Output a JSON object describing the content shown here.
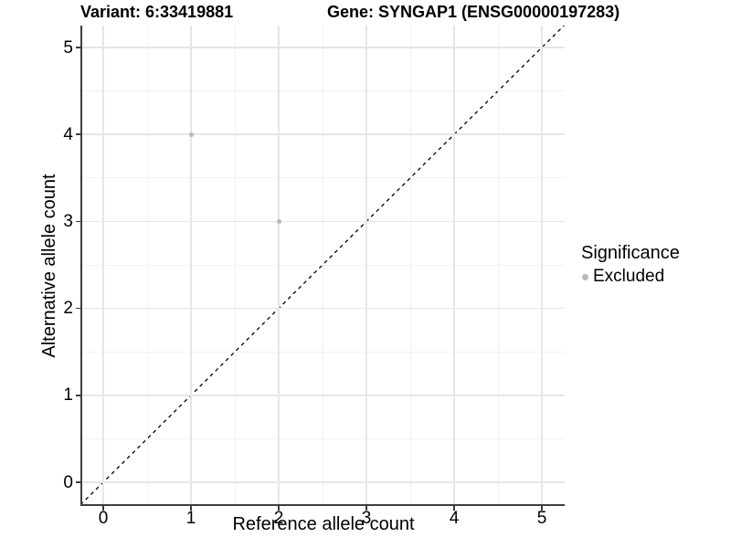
{
  "chart_data": {
    "type": "scatter",
    "title_left": "Variant: 6:33419881",
    "title_right": "Gene: SYNGAP1 (ENSG00000197283)",
    "xlabel": "Reference allele count",
    "ylabel": "Alternative allele count",
    "xlim": [
      -0.26,
      5.26
    ],
    "ylim": [
      -0.26,
      5.26
    ],
    "x_ticks": [
      0,
      1,
      2,
      3,
      4,
      5
    ],
    "y_ticks": [
      0,
      1,
      2,
      3,
      4,
      5
    ],
    "x_minor": [
      0.5,
      1.5,
      2.5,
      3.5,
      4.5
    ],
    "y_minor": [
      0.5,
      1.5,
      2.5,
      3.5,
      4.5
    ],
    "grid": "major+minor",
    "series": [
      {
        "name": "Excluded",
        "color": "#b9b9b9",
        "points": [
          {
            "x": 1,
            "y": 4
          },
          {
            "x": 2,
            "y": 3
          }
        ]
      }
    ],
    "reference_line": {
      "kind": "identity y=x",
      "linetype": "dashed",
      "color": "#000000"
    },
    "legend": {
      "title": "Significance",
      "position": "right",
      "entries": [
        {
          "label": "Excluded",
          "color": "#b9b9b9"
        }
      ]
    }
  },
  "colors": {
    "axis_line": "#3d3d3d",
    "grid_major": "#e6e6e6",
    "grid_minor": "#f2f2f2",
    "point_gray": "#b9b9b9",
    "background": "#ffffff",
    "text": "#000000"
  }
}
